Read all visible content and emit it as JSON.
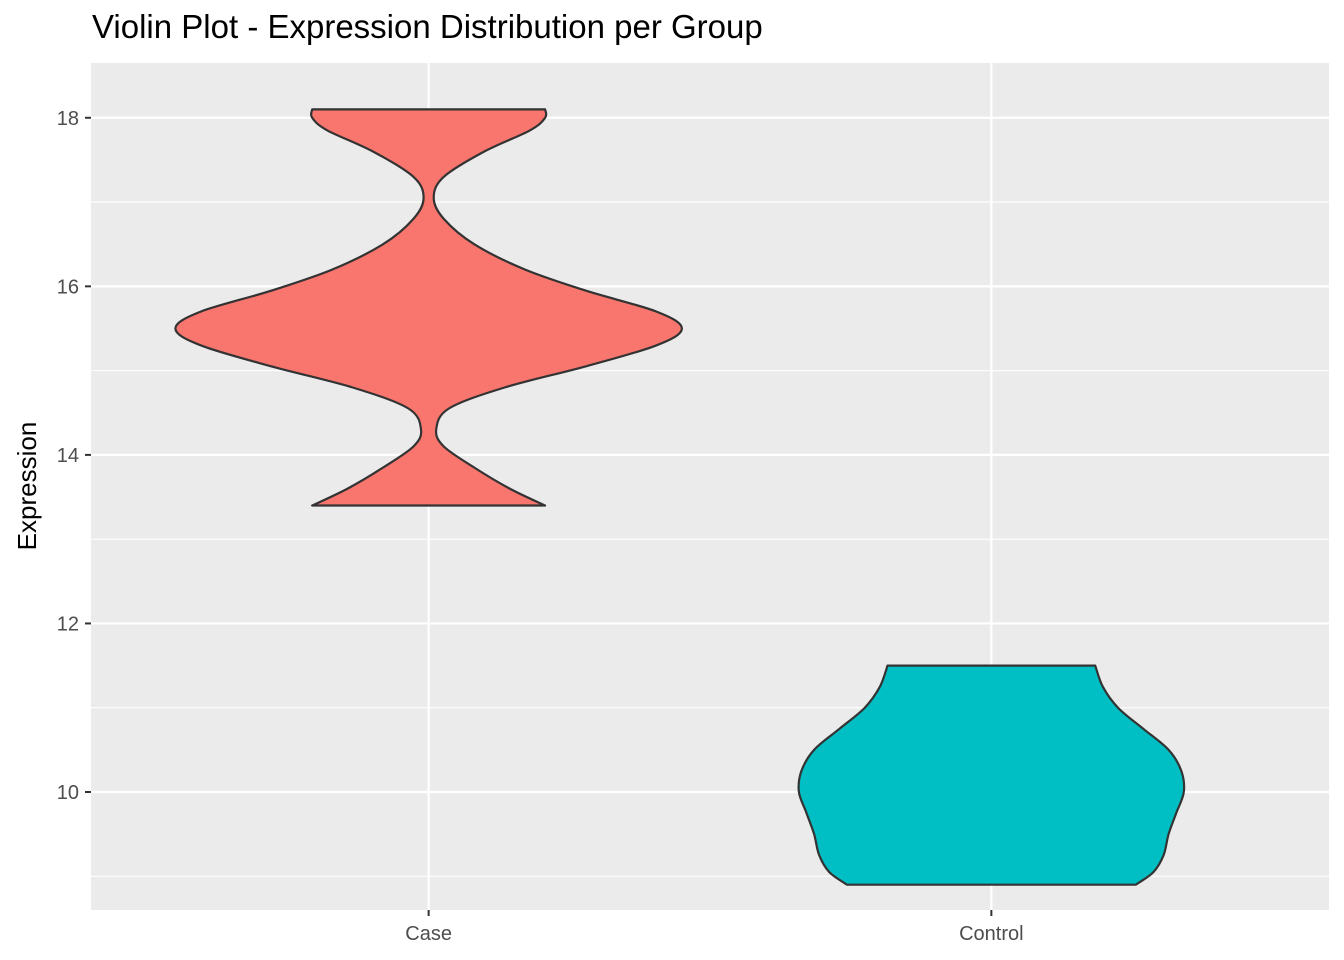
{
  "chart_data": {
    "type": "violin",
    "title": "Violin Plot - Expression Distribution per Group",
    "xlabel": "",
    "ylabel": "Expression",
    "ylim": [
      8.6,
      18.65
    ],
    "yticks": [
      10,
      12,
      14,
      16,
      18
    ],
    "ytick_labels": [
      "10",
      "12",
      "14",
      "16",
      "18"
    ],
    "categories": [
      "Case",
      "Control"
    ],
    "grid": true,
    "legend": "none",
    "series": [
      {
        "category": "Case",
        "color": "#F8766D",
        "min": 13.4,
        "max": 18.1,
        "density_profile": [
          [
            13.4,
            0.46
          ],
          [
            13.6,
            0.32
          ],
          [
            13.85,
            0.18
          ],
          [
            14.1,
            0.06
          ],
          [
            14.3,
            0.03
          ],
          [
            14.55,
            0.08
          ],
          [
            14.8,
            0.3
          ],
          [
            15.05,
            0.62
          ],
          [
            15.3,
            0.9
          ],
          [
            15.5,
            1.0
          ],
          [
            15.7,
            0.9
          ],
          [
            15.95,
            0.62
          ],
          [
            16.2,
            0.38
          ],
          [
            16.5,
            0.18
          ],
          [
            16.8,
            0.06
          ],
          [
            17.05,
            0.02
          ],
          [
            17.3,
            0.06
          ],
          [
            17.6,
            0.22
          ],
          [
            17.85,
            0.4
          ],
          [
            18.0,
            0.46
          ],
          [
            18.1,
            0.46
          ]
        ]
      },
      {
        "category": "Control",
        "color": "#00BFC4",
        "min": 8.9,
        "max": 11.5,
        "density_profile": [
          [
            8.9,
            0.57
          ],
          [
            9.05,
            0.64
          ],
          [
            9.25,
            0.68
          ],
          [
            9.5,
            0.7
          ],
          [
            9.75,
            0.73
          ],
          [
            10.0,
            0.76
          ],
          [
            10.25,
            0.75
          ],
          [
            10.5,
            0.7
          ],
          [
            10.75,
            0.6
          ],
          [
            11.0,
            0.5
          ],
          [
            11.25,
            0.44
          ],
          [
            11.5,
            0.41
          ]
        ]
      }
    ]
  }
}
